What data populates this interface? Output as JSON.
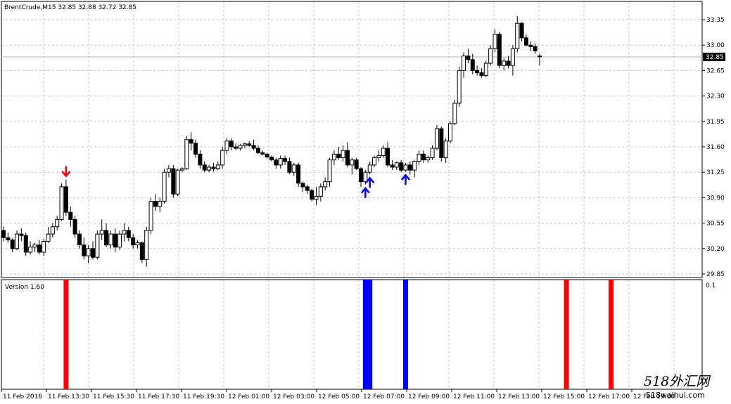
{
  "main": {
    "header": "BrentCrude,M15  32.85 32.88 32.72 32.85",
    "current_price_label": "32.85",
    "price_ticks": [
      "33.35",
      "33.00",
      "32.65",
      "32.30",
      "31.95",
      "31.60",
      "31.25",
      "30.90",
      "30.55",
      "30.20",
      "29.85"
    ]
  },
  "indicator": {
    "title": "Version 1.60",
    "scale_label": "0.1"
  },
  "time_labels": [
    "11 Feb 2016",
    "11 Feb 13:30",
    "11 Feb 15:30",
    "11 Feb 17:30",
    "11 Feb 19:30",
    "12 Feb 01:00",
    "12 Feb 03:00",
    "12 Feb 05:00",
    "12 Feb 07:00",
    "12 Feb 09:00",
    "12 Feb 11:00",
    "12 Feb 13:00",
    "12 Feb 15:00",
    "12 Feb 17:00",
    "12 Feb 19:00"
  ],
  "watermark": {
    "line1": "518外汇网",
    "line2": "518waihui.com"
  },
  "colors": {
    "grid": "#c8c8c8",
    "bull": "#ffffff",
    "bear": "#000000",
    "buy_arrow": "#0000ff",
    "sell_arrow": "#ff0000"
  },
  "chart_data": {
    "type": "candlestick",
    "symbol": "BrentCrude",
    "timeframe": "M15",
    "ohlc_last": {
      "open": 32.85,
      "high": 32.88,
      "low": 32.72,
      "close": 32.85
    },
    "ylim": [
      29.78,
      33.5
    ],
    "grid": true,
    "y_ticks": [
      33.35,
      33.0,
      32.65,
      32.3,
      31.95,
      31.6,
      31.25,
      30.9,
      30.55,
      30.2,
      29.85
    ],
    "candles": [
      [
        30.45,
        30.5,
        30.3,
        30.35
      ],
      [
        30.35,
        30.42,
        30.28,
        30.32
      ],
      [
        30.32,
        30.34,
        30.15,
        30.2
      ],
      [
        30.2,
        30.45,
        30.18,
        30.4
      ],
      [
        30.4,
        30.48,
        30.3,
        30.38
      ],
      [
        30.38,
        30.42,
        30.1,
        30.15
      ],
      [
        30.15,
        30.3,
        30.12,
        30.22
      ],
      [
        30.22,
        30.28,
        30.15,
        30.25
      ],
      [
        30.25,
        30.32,
        30.12,
        30.15
      ],
      [
        30.15,
        30.33,
        30.1,
        30.3
      ],
      [
        30.3,
        30.5,
        30.28,
        30.4
      ],
      [
        30.4,
        30.55,
        30.35,
        30.5
      ],
      [
        30.5,
        30.65,
        30.45,
        30.6
      ],
      [
        30.6,
        31.1,
        30.58,
        31.05
      ],
      [
        31.05,
        31.15,
        30.65,
        30.7
      ],
      [
        30.7,
        30.78,
        30.5,
        30.6
      ],
      [
        30.6,
        30.65,
        30.35,
        30.4
      ],
      [
        30.4,
        30.45,
        30.2,
        30.25
      ],
      [
        30.25,
        30.35,
        30.05,
        30.1
      ],
      [
        30.1,
        30.25,
        30.0,
        30.2
      ],
      [
        30.2,
        30.3,
        30.05,
        30.08
      ],
      [
        30.08,
        30.45,
        30.05,
        30.4
      ],
      [
        30.4,
        30.6,
        30.32,
        30.45
      ],
      [
        30.45,
        30.55,
        30.22,
        30.25
      ],
      [
        30.25,
        30.45,
        30.2,
        30.4
      ],
      [
        30.4,
        30.48,
        30.15,
        30.22
      ],
      [
        30.22,
        30.45,
        30.18,
        30.4
      ],
      [
        30.4,
        30.55,
        30.3,
        30.45
      ],
      [
        30.45,
        30.5,
        30.3,
        30.35
      ],
      [
        30.35,
        30.4,
        30.2,
        30.25
      ],
      [
        30.25,
        30.32,
        30.2,
        30.28
      ],
      [
        30.28,
        30.3,
        30.0,
        30.05
      ],
      [
        30.05,
        30.5,
        29.95,
        30.45
      ],
      [
        30.45,
        30.9,
        30.4,
        30.85
      ],
      [
        30.85,
        30.95,
        30.72,
        30.78
      ],
      [
        30.78,
        30.9,
        30.7,
        30.85
      ],
      [
        30.85,
        31.3,
        30.82,
        31.25
      ],
      [
        31.25,
        31.35,
        31.18,
        31.3
      ],
      [
        31.3,
        31.35,
        30.9,
        30.95
      ],
      [
        30.95,
        31.3,
        30.92,
        31.28
      ],
      [
        31.28,
        31.32,
        31.25,
        31.3
      ],
      [
        31.3,
        31.75,
        31.28,
        31.7
      ],
      [
        31.7,
        31.8,
        31.55,
        31.65
      ],
      [
        31.65,
        31.7,
        31.45,
        31.5
      ],
      [
        31.5,
        31.55,
        31.3,
        31.35
      ],
      [
        31.35,
        31.4,
        31.25,
        31.28
      ],
      [
        31.28,
        31.35,
        31.25,
        31.32
      ],
      [
        31.32,
        31.38,
        31.26,
        31.3
      ],
      [
        31.3,
        31.4,
        31.28,
        31.35
      ],
      [
        31.35,
        31.6,
        31.3,
        31.55
      ],
      [
        31.55,
        31.72,
        31.5,
        31.68
      ],
      [
        31.68,
        31.72,
        31.55,
        31.6
      ],
      [
        31.6,
        31.65,
        31.55,
        31.58
      ],
      [
        31.58,
        31.64,
        31.55,
        31.62
      ],
      [
        31.62,
        31.66,
        31.58,
        31.64
      ],
      [
        31.64,
        31.68,
        31.6,
        31.62
      ],
      [
        31.62,
        31.7,
        31.55,
        31.58
      ],
      [
        31.58,
        31.62,
        31.5,
        31.52
      ],
      [
        31.52,
        31.55,
        31.48,
        31.5
      ],
      [
        31.5,
        31.52,
        31.44,
        31.46
      ],
      [
        31.46,
        31.48,
        31.4,
        31.42
      ],
      [
        31.42,
        31.45,
        31.3,
        31.35
      ],
      [
        31.35,
        31.48,
        31.3,
        31.44
      ],
      [
        31.44,
        31.48,
        31.35,
        31.4
      ],
      [
        31.4,
        31.45,
        31.22,
        31.25
      ],
      [
        31.25,
        31.38,
        31.2,
        31.35
      ],
      [
        31.35,
        31.38,
        31.05,
        31.1
      ],
      [
        31.1,
        31.12,
        30.98,
        31.05
      ],
      [
        31.05,
        31.08,
        30.95,
        31.0
      ],
      [
        31.0,
        31.02,
        30.85,
        30.88
      ],
      [
        30.88,
        31.05,
        30.8,
        30.92
      ],
      [
        30.92,
        31.1,
        30.85,
        31.05
      ],
      [
        31.05,
        31.18,
        31.0,
        31.12
      ],
      [
        31.12,
        31.45,
        31.05,
        31.42
      ],
      [
        31.42,
        31.55,
        31.35,
        31.5
      ],
      [
        31.5,
        31.6,
        31.42,
        31.45
      ],
      [
        31.45,
        31.62,
        31.4,
        31.55
      ],
      [
        31.55,
        31.66,
        31.32,
        31.35
      ],
      [
        31.35,
        31.45,
        31.22,
        31.42
      ],
      [
        31.42,
        31.45,
        31.28,
        31.3
      ],
      [
        31.3,
        31.32,
        31.05,
        31.12
      ],
      [
        31.12,
        31.28,
        31.08,
        31.25
      ],
      [
        31.25,
        31.4,
        31.22,
        31.35
      ],
      [
        31.35,
        31.48,
        31.32,
        31.45
      ],
      [
        31.45,
        31.55,
        31.4,
        31.48
      ],
      [
        31.48,
        31.62,
        31.45,
        31.58
      ],
      [
        31.58,
        31.66,
        31.32,
        31.35
      ],
      [
        31.35,
        31.42,
        31.28,
        31.32
      ],
      [
        31.32,
        31.4,
        31.28,
        31.38
      ],
      [
        31.38,
        31.42,
        31.25,
        31.28
      ],
      [
        31.28,
        31.38,
        31.26,
        31.35
      ],
      [
        31.35,
        31.4,
        31.22,
        31.28
      ],
      [
        31.28,
        31.42,
        31.18,
        31.4
      ],
      [
        31.4,
        31.55,
        31.35,
        31.5
      ],
      [
        31.5,
        31.55,
        31.38,
        31.42
      ],
      [
        31.42,
        31.48,
        31.38,
        31.45
      ],
      [
        31.45,
        31.62,
        31.42,
        31.58
      ],
      [
        31.58,
        31.9,
        31.55,
        31.85
      ],
      [
        31.85,
        31.88,
        31.4,
        31.45
      ],
      [
        31.45,
        31.72,
        31.38,
        31.68
      ],
      [
        31.68,
        31.95,
        31.65,
        31.92
      ],
      [
        31.92,
        32.25,
        31.9,
        32.2
      ],
      [
        32.2,
        32.7,
        32.15,
        32.65
      ],
      [
        32.65,
        32.9,
        32.55,
        32.85
      ],
      [
        32.85,
        32.95,
        32.75,
        32.8
      ],
      [
        32.8,
        32.88,
        32.6,
        32.65
      ],
      [
        32.65,
        32.72,
        32.58,
        32.62
      ],
      [
        32.62,
        32.68,
        32.55,
        32.58
      ],
      [
        32.58,
        32.78,
        32.56,
        32.75
      ],
      [
        32.75,
        33.0,
        32.72,
        32.95
      ],
      [
        32.95,
        33.22,
        32.9,
        33.15
      ],
      [
        33.15,
        33.18,
        32.68,
        32.72
      ],
      [
        32.72,
        32.82,
        32.65,
        32.78
      ],
      [
        32.78,
        32.85,
        32.68,
        32.72
      ],
      [
        32.72,
        33.0,
        32.58,
        32.95
      ],
      [
        32.95,
        33.4,
        32.9,
        33.3
      ],
      [
        33.3,
        33.32,
        33.05,
        33.1
      ],
      [
        33.1,
        33.15,
        32.98,
        33.0
      ],
      [
        33.0,
        33.05,
        32.92,
        32.98
      ],
      [
        32.98,
        33.02,
        32.88,
        32.92
      ],
      [
        32.85,
        32.88,
        32.72,
        32.85
      ]
    ],
    "signals": [
      {
        "candle": 14,
        "type": "sell"
      },
      {
        "candle": 81,
        "type": "buy"
      },
      {
        "candle": 82,
        "type": "buy"
      },
      {
        "candle": 90,
        "type": "buy"
      },
      {
        "candle": 126,
        "type": "sell"
      },
      {
        "candle": 136,
        "type": "sell"
      }
    ],
    "indicator_bars": [
      {
        "candle": 14,
        "color": "red"
      },
      {
        "candle": 81,
        "color": "blue"
      },
      {
        "candle": 82,
        "color": "blue"
      },
      {
        "candle": 90,
        "color": "blue"
      },
      {
        "candle": 126,
        "color": "red"
      },
      {
        "candle": 136,
        "color": "red"
      }
    ]
  }
}
